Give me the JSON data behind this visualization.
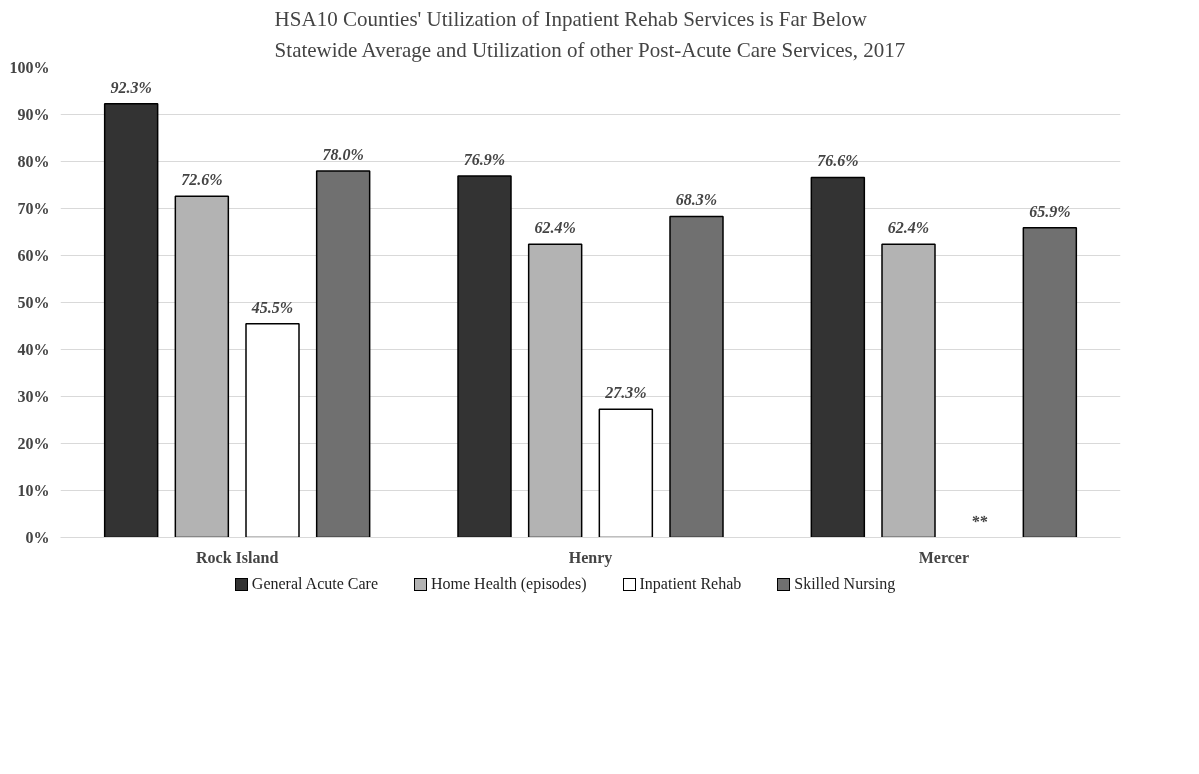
{
  "chart_data": {
    "type": "bar",
    "title": "HSA10 Counties' Utilization of Inpatient Rehab Services is Far Below\nStatewide Average and Utilization of other Post-Acute Care Services, 2017",
    "categories": [
      "Rock Island",
      "Henry",
      "Mercer"
    ],
    "series": [
      {
        "name": "General Acute Care",
        "color": "#333333",
        "values": [
          92.3,
          76.9,
          76.6
        ],
        "value_labels": [
          "92.3%",
          "76.9%",
          "76.6%"
        ]
      },
      {
        "name": "Home Health (episodes)",
        "color": "#b3b3b3",
        "values": [
          72.6,
          62.4,
          62.4
        ],
        "value_labels": [
          "72.6%",
          "62.4%",
          "62.4%"
        ]
      },
      {
        "name": "Inpatient Rehab",
        "color": "#ffffff",
        "values": [
          45.5,
          27.3,
          null
        ],
        "value_labels": [
          "45.5%",
          "27.3%",
          "**"
        ]
      },
      {
        "name": "Skilled Nursing",
        "color": "#707070",
        "values": [
          78.0,
          68.3,
          65.9
        ],
        "value_labels": [
          "78.0%",
          "68.3%",
          "65.9%"
        ]
      }
    ],
    "ylim": [
      0,
      100
    ],
    "yticks": [
      {
        "value": 0,
        "label": "0%"
      },
      {
        "value": 10,
        "label": "10%"
      },
      {
        "value": 20,
        "label": "20%"
      },
      {
        "value": 30,
        "label": "30%"
      },
      {
        "value": 40,
        "label": "40%"
      },
      {
        "value": 50,
        "label": "50%"
      },
      {
        "value": 60,
        "label": "60%"
      },
      {
        "value": 70,
        "label": "70%"
      },
      {
        "value": 80,
        "label": "80%"
      },
      {
        "value": 90,
        "label": "90%"
      },
      {
        "value": 100,
        "label": "100%"
      }
    ],
    "grid": "y",
    "legend": "bottom"
  }
}
